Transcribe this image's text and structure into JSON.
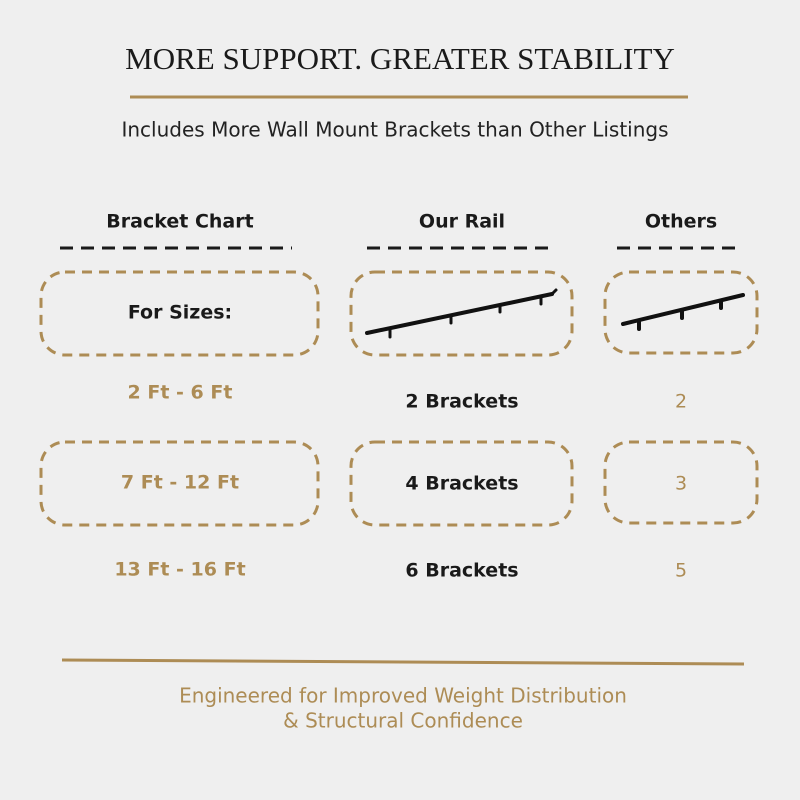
{
  "header": {
    "title": "MORE SUPPORT. GREATER STABILITY",
    "subtitle": "Includes More Wall Mount Brackets than Other Listings"
  },
  "table": {
    "columns": [
      "Bracket Chart",
      "Our Rail",
      "Others"
    ],
    "row_label_header": "For Sizes:",
    "rows": [
      [
        "2 Ft - 6 Ft",
        "2 Brackets",
        "2"
      ],
      [
        "7 Ft - 12 Ft",
        "4 Brackets",
        "3"
      ],
      [
        "13 Ft - 16 Ft",
        "6 Brackets",
        "5"
      ]
    ]
  },
  "footer": {
    "lines": [
      "Engineered for Improved Weight Distribution",
      "& Structural Confidence"
    ]
  }
}
